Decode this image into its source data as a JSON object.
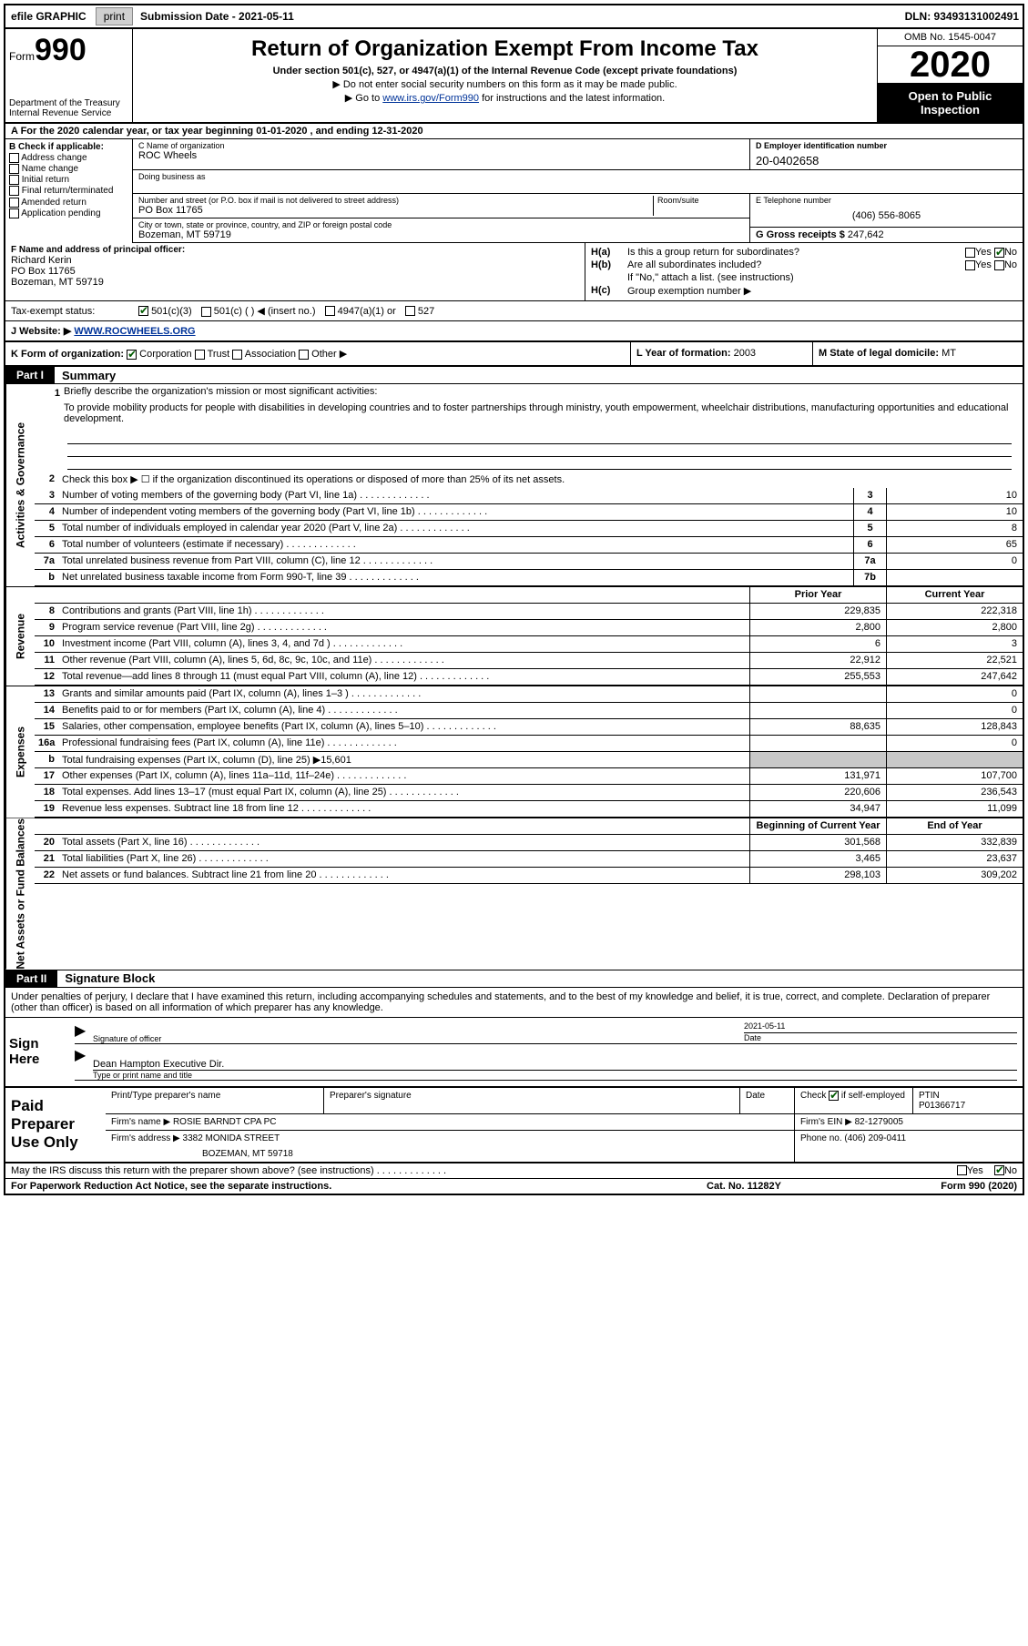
{
  "topbar": {
    "efile": "efile GRAPHIC",
    "print": "print",
    "sub_label": "Submission Date - 2021-05-11",
    "dln": "DLN: 93493131002491"
  },
  "header": {
    "form_word": "Form",
    "form_num": "990",
    "dept": "Department of the Treasury\nInternal Revenue Service",
    "title": "Return of Organization Exempt From Income Tax",
    "subtitle": "Under section 501(c), 527, or 4947(a)(1) of the Internal Revenue Code (except private foundations)",
    "note1": "▶ Do not enter social security numbers on this form as it may be made public.",
    "note2_pre": "▶ Go to ",
    "note2_link": "www.irs.gov/Form990",
    "note2_post": " for instructions and the latest information.",
    "omb": "OMB No. 1545-0047",
    "year": "2020",
    "open": "Open to Public Inspection"
  },
  "period": "A For the 2020 calendar year, or tax year beginning 01-01-2020    , and ending 12-31-2020",
  "boxB": {
    "label": "B Check if applicable:",
    "items": [
      "Address change",
      "Name change",
      "Initial return",
      "Final return/terminated",
      "Amended return",
      "Application pending"
    ]
  },
  "org": {
    "name_label": "C Name of organization",
    "name": "ROC Wheels",
    "dba_label": "Doing business as",
    "dba": "",
    "street_label": "Number and street (or P.O. box if mail is not delivered to street address)",
    "room_label": "Room/suite",
    "street": "PO Box 11765",
    "city_label": "City or town, state or province, country, and ZIP or foreign postal code",
    "city": "Bozeman, MT  59719"
  },
  "boxD": {
    "label": "D Employer identification number",
    "val": "20-0402658"
  },
  "boxE": {
    "label": "E Telephone number",
    "val": "(406) 556-8065"
  },
  "boxG": {
    "label": "G Gross receipts $",
    "val": "247,642"
  },
  "boxF": {
    "label": "F  Name and address of principal officer:",
    "name": "Richard Kerin",
    "addr1": "PO Box 11765",
    "addr2": "Bozeman, MT  59719"
  },
  "boxH": {
    "ha_label": "H(a)",
    "ha_text": "Is this a group return for subordinates?",
    "hb_label": "H(b)",
    "hb_text": "Are all subordinates included?",
    "hb_note": "If \"No,\" attach a list. (see instructions)",
    "hc_label": "H(c)",
    "hc_text": "Group exemption number ▶",
    "yes": "Yes",
    "no": "No"
  },
  "taxstatus": {
    "label": "Tax-exempt status:",
    "o1": "501(c)(3)",
    "o2": "501(c) (   ) ◀ (insert no.)",
    "o3": "4947(a)(1) or",
    "o4": "527"
  },
  "website": {
    "label": "J   Website: ▶",
    "val": "WWW.ROCWHEELS.ORG"
  },
  "boxK": {
    "label": "K Form of organization:",
    "o1": "Corporation",
    "o2": "Trust",
    "o3": "Association",
    "o4": "Other ▶"
  },
  "boxL": {
    "label": "L Year of formation:",
    "val": "2003"
  },
  "boxM": {
    "label": "M State of legal domicile:",
    "val": "MT"
  },
  "part1": {
    "header": "Part I",
    "title": "Summary",
    "mission_label": "Briefly describe the organization's mission or most significant activities:",
    "mission": "To provide mobility products for people with disabilities in developing countries and to foster partnerships through ministry, youth empowerment, wheelchair distributions, manufacturing opportunities and educational development.",
    "line2": "Check this box ▶ ☐  if the organization discontinued its operations or disposed of more than 25% of its net assets.",
    "prior_year": "Prior Year",
    "current_year": "Current Year",
    "boy": "Beginning of Current Year",
    "eoy": "End of Year"
  },
  "sidebars": {
    "ag": "Activities & Governance",
    "rev": "Revenue",
    "exp": "Expenses",
    "na": "Net Assets or Fund Balances"
  },
  "lines_gov": [
    {
      "n": "3",
      "d": "Number of voting members of the governing body (Part VI, line 1a)",
      "box": "3",
      "v": "10"
    },
    {
      "n": "4",
      "d": "Number of independent voting members of the governing body (Part VI, line 1b)",
      "box": "4",
      "v": "10"
    },
    {
      "n": "5",
      "d": "Total number of individuals employed in calendar year 2020 (Part V, line 2a)",
      "box": "5",
      "v": "8"
    },
    {
      "n": "6",
      "d": "Total number of volunteers (estimate if necessary)",
      "box": "6",
      "v": "65"
    },
    {
      "n": "7a",
      "d": "Total unrelated business revenue from Part VIII, column (C), line 12",
      "box": "7a",
      "v": "0"
    },
    {
      "n": "b",
      "d": "Net unrelated business taxable income from Form 990-T, line 39",
      "box": "7b",
      "v": ""
    }
  ],
  "lines_rev": [
    {
      "n": "8",
      "d": "Contributions and grants (Part VIII, line 1h)",
      "py": "229,835",
      "cy": "222,318"
    },
    {
      "n": "9",
      "d": "Program service revenue (Part VIII, line 2g)",
      "py": "2,800",
      "cy": "2,800"
    },
    {
      "n": "10",
      "d": "Investment income (Part VIII, column (A), lines 3, 4, and 7d )",
      "py": "6",
      "cy": "3"
    },
    {
      "n": "11",
      "d": "Other revenue (Part VIII, column (A), lines 5, 6d, 8c, 9c, 10c, and 11e)",
      "py": "22,912",
      "cy": "22,521"
    },
    {
      "n": "12",
      "d": "Total revenue—add lines 8 through 11 (must equal Part VIII, column (A), line 12)",
      "py": "255,553",
      "cy": "247,642"
    }
  ],
  "lines_exp": [
    {
      "n": "13",
      "d": "Grants and similar amounts paid (Part IX, column (A), lines 1–3 )",
      "py": "",
      "cy": "0"
    },
    {
      "n": "14",
      "d": "Benefits paid to or for members (Part IX, column (A), line 4)",
      "py": "",
      "cy": "0"
    },
    {
      "n": "15",
      "d": "Salaries, other compensation, employee benefits (Part IX, column (A), lines 5–10)",
      "py": "88,635",
      "cy": "128,843"
    },
    {
      "n": "16a",
      "d": "Professional fundraising fees (Part IX, column (A), line 11e)",
      "py": "",
      "cy": "0"
    },
    {
      "n": "b",
      "d": "Total fundraising expenses (Part IX, column (D), line 25) ▶15,601",
      "py": "grey",
      "cy": "grey"
    },
    {
      "n": "17",
      "d": "Other expenses (Part IX, column (A), lines 11a–11d, 11f–24e)",
      "py": "131,971",
      "cy": "107,700"
    },
    {
      "n": "18",
      "d": "Total expenses. Add lines 13–17 (must equal Part IX, column (A), line 25)",
      "py": "220,606",
      "cy": "236,543"
    },
    {
      "n": "19",
      "d": "Revenue less expenses. Subtract line 18 from line 12",
      "py": "34,947",
      "cy": "11,099"
    }
  ],
  "lines_na": [
    {
      "n": "20",
      "d": "Total assets (Part X, line 16)",
      "py": "301,568",
      "cy": "332,839"
    },
    {
      "n": "21",
      "d": "Total liabilities (Part X, line 26)",
      "py": "3,465",
      "cy": "23,637"
    },
    {
      "n": "22",
      "d": "Net assets or fund balances. Subtract line 21 from line 20",
      "py": "298,103",
      "cy": "309,202"
    }
  ],
  "part2": {
    "header": "Part II",
    "title": "Signature Block",
    "intro": "Under penalties of perjury, I declare that I have examined this return, including accompanying schedules and statements, and to the best of my knowledge and belief, it is true, correct, and complete. Declaration of preparer (other than officer) is based on all information of which preparer has any knowledge."
  },
  "sign": {
    "label": "Sign Here",
    "sig_officer": "Signature of officer",
    "date_label": "Date",
    "date": "2021-05-11",
    "name": "Dean Hampton Executive Dir.",
    "name_label": "Type or print name and title"
  },
  "prep": {
    "label": "Paid Preparer Use Only",
    "c1": "Print/Type preparer's name",
    "c2": "Preparer's signature",
    "c3": "Date",
    "c4a": "Check",
    "c4b": "if self-employed",
    "c5": "PTIN",
    "ptin": "P01366717",
    "firm_name_l": "Firm's name    ▶",
    "firm_name": "ROSIE BARNDT CPA PC",
    "firm_ein_l": "Firm's EIN ▶",
    "firm_ein": "82-1279005",
    "firm_addr_l": "Firm's address ▶",
    "firm_addr1": "3382 MONIDA STREET",
    "firm_addr2": "BOZEMAN, MT  59718",
    "phone_l": "Phone no.",
    "phone": "(406) 209-0411"
  },
  "footer": {
    "discuss": "May the IRS discuss this return with the preparer shown above? (see instructions)",
    "yes": "Yes",
    "no": "No",
    "paperwork": "For Paperwork Reduction Act Notice, see the separate instructions.",
    "cat": "Cat. No. 11282Y",
    "form": "Form 990 (2020)"
  }
}
